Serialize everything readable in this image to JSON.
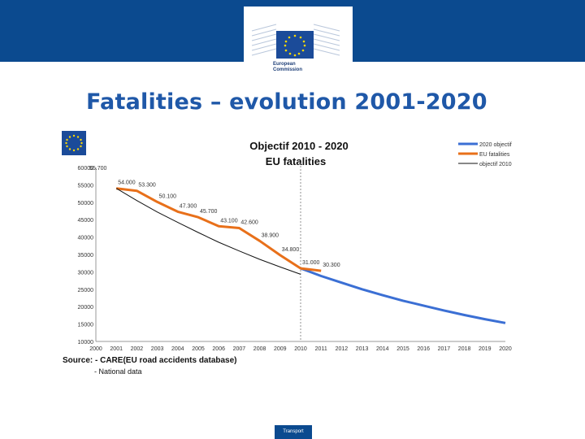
{
  "header": {
    "logo_text_line1": "European",
    "logo_text_line2": "Commission"
  },
  "page_title": "Fatalities – evolution 2001-2020",
  "footer_label": "Transport",
  "source_text": "Source: - CARE(EU road accidents database)",
  "source_text2": "- National data",
  "colors": {
    "banner": "#0b4a8f",
    "title": "#1f58a8",
    "objectif_line": "#3b6fd4",
    "eu_line": "#e8701a",
    "objectif2010_line": "#111111"
  },
  "chart_data": {
    "type": "line",
    "title": "Objectif 2010 - 2020",
    "subtitle": "EU fatalities",
    "ylim": [
      10000,
      60000
    ],
    "yticks": [
      "60000",
      "55000",
      "50000",
      "45000",
      "40000",
      "35000",
      "30000",
      "25000",
      "20000",
      "15000",
      "10000"
    ],
    "ytick_values": [
      60000,
      55000,
      50000,
      45000,
      40000,
      35000,
      30000,
      25000,
      20000,
      15000,
      10000
    ],
    "xticks": [
      "2000",
      "2001",
      "2002",
      "2003",
      "2004",
      "2005",
      "2006",
      "2007",
      "2008",
      "2009",
      "2010",
      "2011",
      "2012",
      "2013",
      "2014",
      "2015",
      "2016",
      "2017",
      "2018",
      "2019",
      "2020"
    ],
    "xmin": 2000,
    "xmax": 2020,
    "vline_x": 2010,
    "series": [
      {
        "name": "2020 objectif",
        "color": "#3b6fd4",
        "x": [
          2010,
          2011,
          2012,
          2013,
          2014,
          2015,
          2016,
          2017,
          2018,
          2019,
          2020
        ],
        "values": [
          31000,
          28800,
          26900,
          25000,
          23300,
          21700,
          20300,
          18900,
          17600,
          16400,
          15300
        ]
      },
      {
        "name": "EU fatalities",
        "color": "#e8701a",
        "x": [
          2001,
          2002,
          2003,
          2004,
          2005,
          2006,
          2007,
          2008,
          2009,
          2010,
          2011
        ],
        "values": [
          54000,
          53300,
          50100,
          47300,
          45700,
          43100,
          42600,
          38900,
          34800,
          31000,
          30300
        ]
      },
      {
        "name": "objectif 2010",
        "color": "#111111",
        "x": [
          2001,
          2002,
          2003,
          2004,
          2005,
          2006,
          2007,
          2008,
          2009,
          2010
        ],
        "values": [
          54000,
          50500,
          47200,
          44200,
          41300,
          38500,
          36000,
          33600,
          31400,
          29300
        ]
      }
    ],
    "data_labels": [
      {
        "text": "54.000",
        "x": 2001,
        "y": 54000
      },
      {
        "text": "53.300",
        "x": 2002,
        "y": 53300
      },
      {
        "text": "50.100",
        "x": 2003,
        "y": 50100
      },
      {
        "text": "47.300",
        "x": 2004,
        "y": 47300
      },
      {
        "text": "45.700",
        "x": 2005,
        "y": 45700
      },
      {
        "text": "43.100",
        "x": 2006,
        "y": 43100
      },
      {
        "text": "42.600",
        "x": 2007,
        "y": 42600
      },
      {
        "text": "38.900",
        "x": 2008,
        "y": 38900
      },
      {
        "text": "34.800",
        "x": 2009,
        "y": 34800
      },
      {
        "text": "31.000",
        "x": 2010,
        "y": 31000
      },
      {
        "text": "30.300",
        "x": 2011,
        "y": 30300
      },
      {
        "text": "55.700",
        "x": 2000,
        "y": 60000
      }
    ]
  }
}
